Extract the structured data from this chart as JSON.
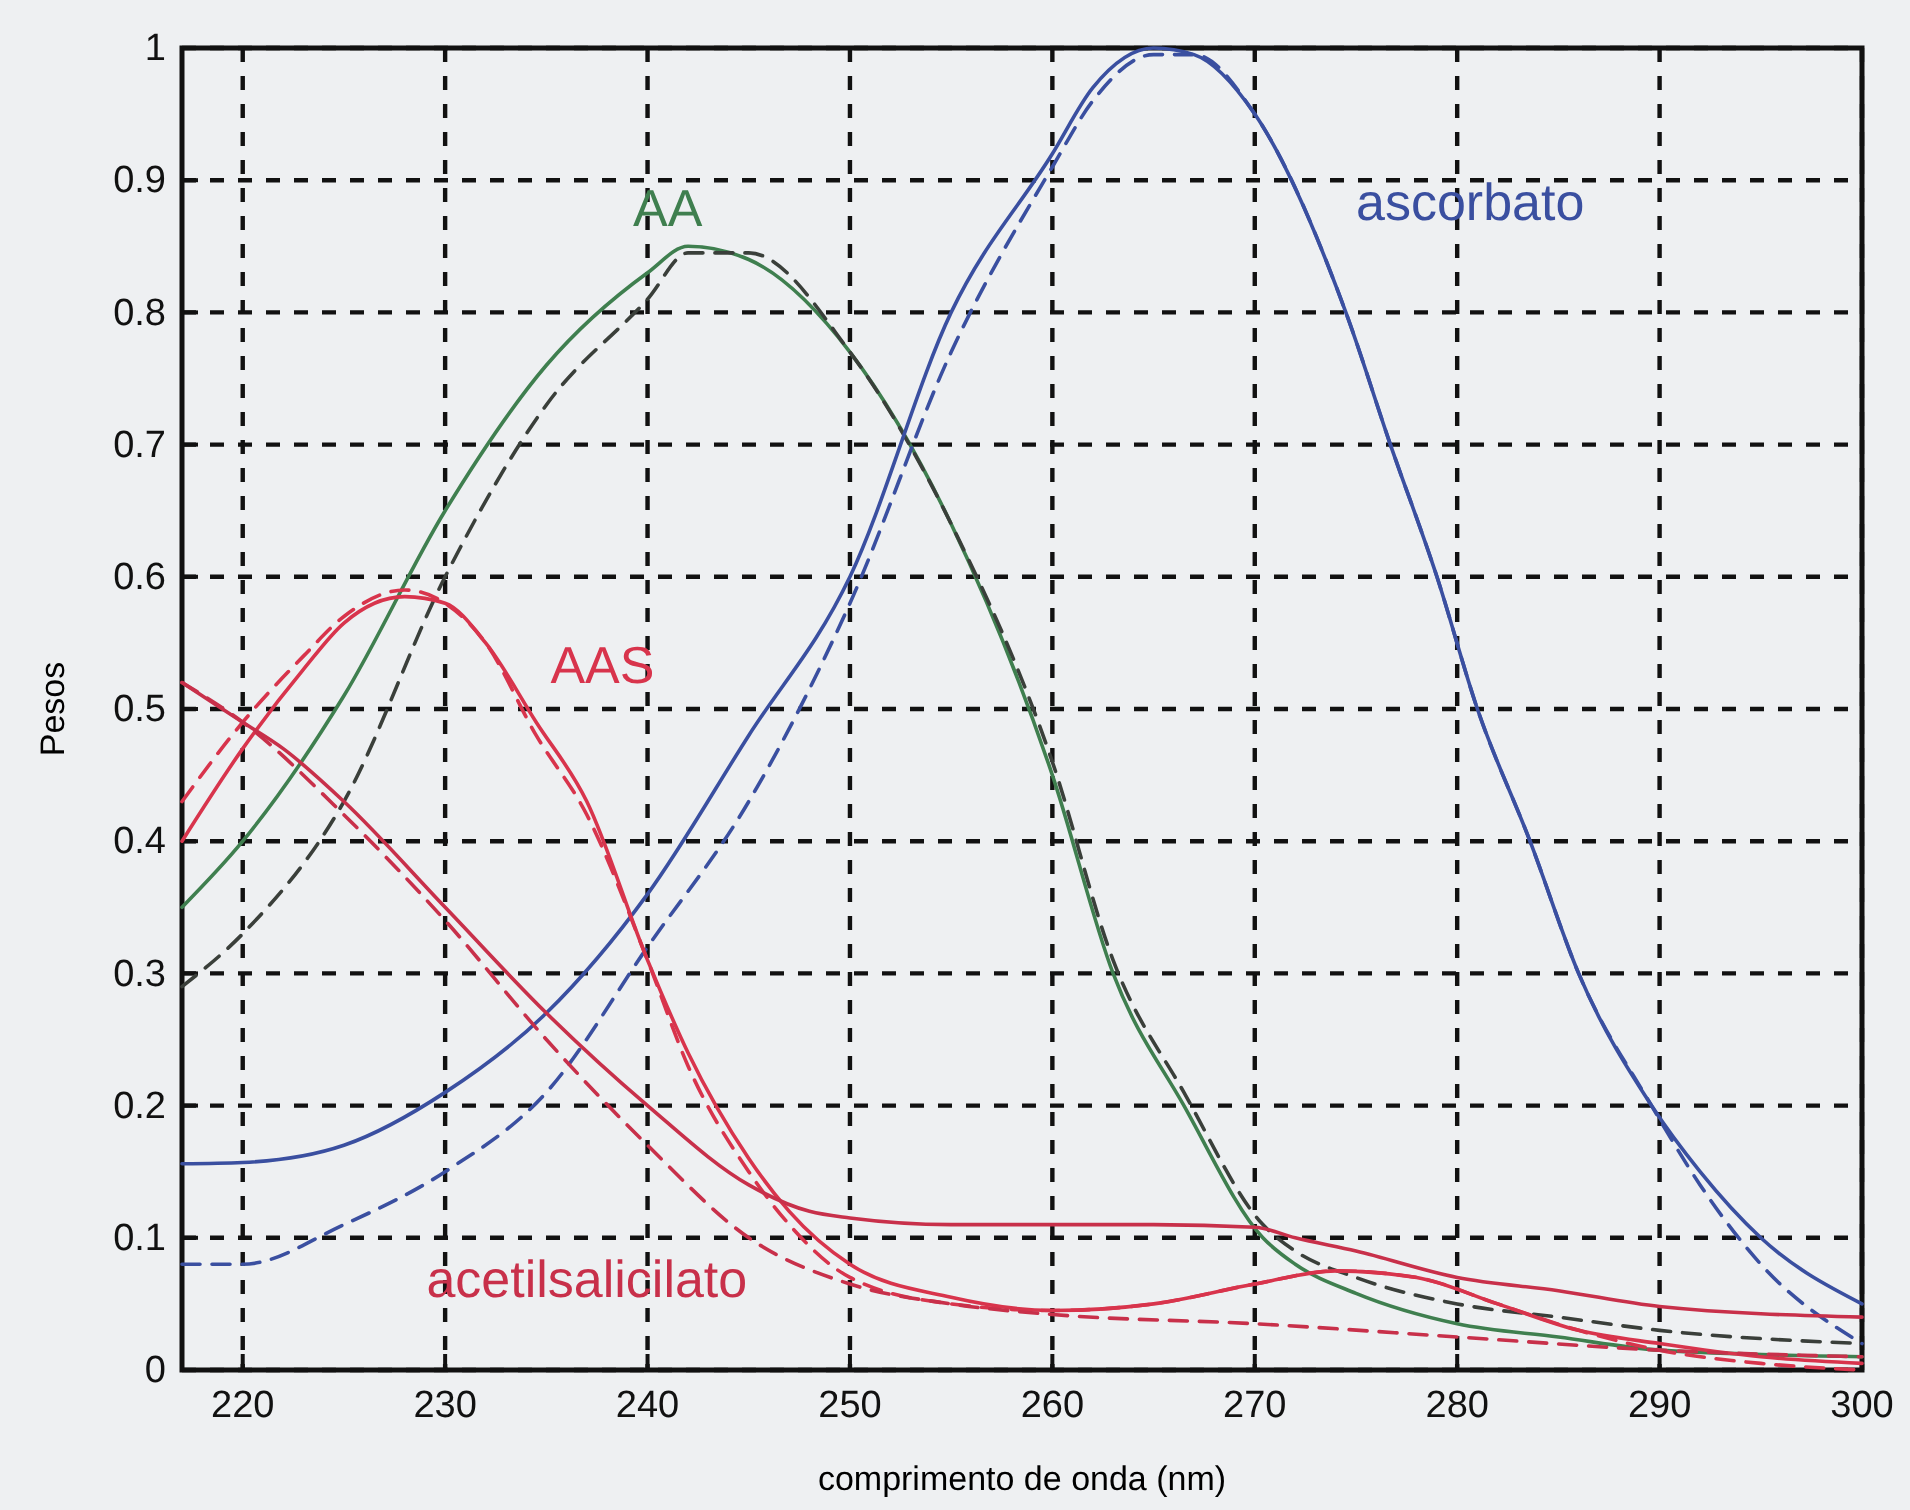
{
  "chart_data": {
    "type": "line",
    "xlabel": "comprimento de onda (nm)",
    "ylabel": "Pesos",
    "xlim": [
      217,
      300
    ],
    "ylim": [
      0,
      1
    ],
    "xticks": [
      220,
      230,
      240,
      250,
      260,
      270,
      280,
      290,
      300
    ],
    "yticks": [
      0,
      0.1,
      0.2,
      0.3,
      0.4,
      0.5,
      0.6,
      0.7,
      0.8,
      0.9,
      1
    ],
    "grid": true,
    "legend": false,
    "marker": "none",
    "line_style": "solid",
    "series": [
      {
        "name": "AA",
        "color": "#3f7f4f",
        "x": [
          217,
          220,
          225,
          230,
          235,
          240,
          242,
          245,
          250,
          255,
          260,
          263,
          266.5,
          270.4,
          272,
          275,
          280,
          285,
          290,
          300
        ],
        "values": [
          0.35,
          0.4,
          0.51,
          0.65,
          0.76,
          0.83,
          0.85,
          0.84,
          0.77,
          0.64,
          0.45,
          0.3,
          0.2,
          0.1,
          0.08,
          0.058,
          0.035,
          0.025,
          0.015,
          0.01
        ]
      },
      {
        "color": "#3a3f3a",
        "line_style": "dashed",
        "x": [
          217,
          220,
          225,
          230,
          235,
          240,
          242,
          245,
          250,
          255,
          260,
          263,
          266.5,
          270.4,
          272,
          275,
          280,
          285,
          290,
          300
        ],
        "values": [
          0.29,
          0.33,
          0.43,
          0.6,
          0.73,
          0.81,
          0.845,
          0.845,
          0.77,
          0.64,
          0.46,
          0.31,
          0.21,
          0.11,
          0.09,
          0.07,
          0.05,
          0.04,
          0.03,
          0.02
        ]
      },
      {
        "name": "ascorbato",
        "color": "#3a4fa0",
        "x": [
          217,
          220,
          225,
          230,
          235,
          240,
          245,
          250,
          255,
          260,
          262,
          265,
          267,
          270,
          274.5,
          276.7,
          279,
          281,
          283.6,
          286,
          289.6,
          292,
          295,
          300
        ],
        "values": [
          0.156,
          0.157,
          0.17,
          0.21,
          0.27,
          0.36,
          0.48,
          0.6,
          0.8,
          0.92,
          0.97,
          1,
          0.995,
          0.95,
          0.8,
          0.7,
          0.6,
          0.5,
          0.4,
          0.3,
          0.2,
          0.15,
          0.1,
          0.05
        ]
      },
      {
        "color": "#3a4fa0",
        "line_style": "dashed",
        "x": [
          217,
          220,
          225,
          230,
          235,
          240,
          245,
          250,
          255,
          260,
          262,
          265,
          267,
          270,
          274.5,
          276.7,
          279,
          281,
          283.6,
          286,
          289.6,
          292,
          295,
          300
        ],
        "values": [
          0.08,
          0.08,
          0.11,
          0.15,
          0.21,
          0.32,
          0.43,
          0.58,
          0.77,
          0.91,
          0.96,
          0.995,
          0.995,
          0.95,
          0.8,
          0.7,
          0.6,
          0.5,
          0.4,
          0.3,
          0.2,
          0.14,
          0.08,
          0.02
        ]
      },
      {
        "name": "AAS",
        "color": "#d8344c",
        "x": [
          217,
          220,
          223,
          225,
          228,
          230,
          232,
          234.5,
          237,
          240,
          242,
          245,
          247,
          250,
          255,
          260,
          265,
          270,
          274,
          278,
          282,
          286,
          290,
          295,
          300
        ],
        "values": [
          0.4,
          0.47,
          0.53,
          0.565,
          0.585,
          0.58,
          0.55,
          0.49,
          0.43,
          0.31,
          0.24,
          0.16,
          0.12,
          0.08,
          0.055,
          0.045,
          0.05,
          0.065,
          0.075,
          0.07,
          0.05,
          0.03,
          0.02,
          0.01,
          0.005
        ]
      },
      {
        "color": "#d8344c",
        "line_style": "dashed",
        "x": [
          217,
          220,
          223,
          225,
          228,
          230,
          232,
          234.5,
          237,
          240,
          242,
          245,
          247,
          250,
          255,
          260,
          265,
          270,
          274,
          278,
          282,
          286,
          290,
          295,
          300
        ],
        "values": [
          0.43,
          0.49,
          0.54,
          0.57,
          0.59,
          0.58,
          0.55,
          0.48,
          0.42,
          0.31,
          0.23,
          0.15,
          0.11,
          0.07,
          0.05,
          0.045,
          0.05,
          0.065,
          0.075,
          0.07,
          0.05,
          0.03,
          0.015,
          0.005,
          0
        ]
      },
      {
        "name": "acetilsalicilato",
        "color": "#c8304a",
        "x": [
          217,
          220,
          222,
          225,
          230,
          235,
          240,
          245,
          248,
          250,
          255,
          260,
          265,
          270,
          272,
          275,
          280,
          285,
          290,
          300
        ],
        "values": [
          0.52,
          0.49,
          0.47,
          0.43,
          0.35,
          0.27,
          0.2,
          0.14,
          0.12,
          0.115,
          0.11,
          0.11,
          0.11,
          0.108,
          0.1,
          0.09,
          0.07,
          0.06,
          0.048,
          0.04
        ]
      },
      {
        "color": "#c8304a",
        "line_style": "dashed",
        "x": [
          217,
          220,
          225,
          230,
          235,
          240,
          245,
          250,
          255,
          260,
          270,
          280,
          290,
          300
        ],
        "values": [
          0.52,
          0.49,
          0.42,
          0.34,
          0.25,
          0.17,
          0.1,
          0.065,
          0.05,
          0.042,
          0.035,
          0.025,
          0.015,
          0.01
        ]
      }
    ]
  }
}
